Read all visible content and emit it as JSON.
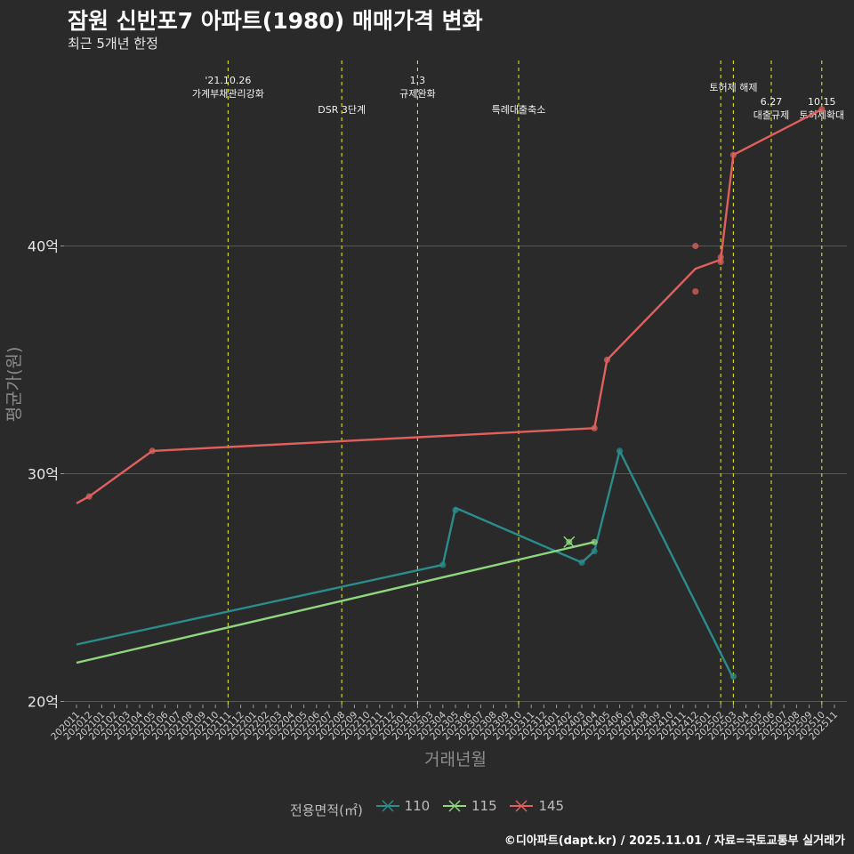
{
  "header": {
    "title": "잠원 신반포7 아파트(1980) 매매가격 변화",
    "subtitle": "최근 5개년 한정"
  },
  "caption": "©디아파트(dapt.kr) / 2025.11.01 / 자료=국토교통부 실거래가",
  "colors": {
    "background": "#2b2a2b",
    "grid": "#5a5a5a",
    "event_line": "#d9e021",
    "series_110": "#2b8c8c",
    "series_115": "#8fd67f",
    "series_145": "#e0605e"
  },
  "chart_data": {
    "type": "line",
    "xlabel": "거래년월",
    "ylabel": "평균가(원)",
    "ylim": [
      20,
      46.5
    ],
    "y_unit": "억",
    "y_ticks": [
      20,
      30,
      40
    ],
    "y_tick_labels": [
      "20억",
      "30억",
      "40억"
    ],
    "categories": [
      "202011",
      "202012",
      "202101",
      "202102",
      "202103",
      "202104",
      "202105",
      "202106",
      "202107",
      "202108",
      "202109",
      "202110",
      "202111",
      "202112",
      "202201",
      "202202",
      "202203",
      "202204",
      "202205",
      "202206",
      "202207",
      "202208",
      "202209",
      "202210",
      "202211",
      "202212",
      "202301",
      "202302",
      "202303",
      "202304",
      "202305",
      "202306",
      "202307",
      "202308",
      "202309",
      "202310",
      "202311",
      "202312",
      "202401",
      "202402",
      "202403",
      "202404",
      "202405",
      "202406",
      "202407",
      "202408",
      "202409",
      "202410",
      "202411",
      "202412",
      "202501",
      "202502",
      "202503",
      "202504",
      "202505",
      "202506",
      "202507",
      "202508",
      "202509",
      "202510",
      "202511"
    ],
    "legend_title": "전용면적(㎡)",
    "series": [
      {
        "name": "110",
        "color": "#2b8c8c",
        "line": [
          [
            "202011",
            22.5
          ],
          [
            "202304",
            26.0
          ],
          [
            "202305",
            28.5
          ],
          [
            "202403",
            26.1
          ],
          [
            "202404",
            26.6
          ],
          [
            "202406",
            31.0
          ],
          [
            "202503",
            21.0
          ]
        ],
        "points": [
          [
            "202304",
            26.0
          ],
          [
            "202305",
            28.4
          ],
          [
            "202403",
            26.1
          ],
          [
            "202404",
            26.6
          ],
          [
            "202406",
            31.0
          ],
          [
            "202503",
            21.1
          ]
        ]
      },
      {
        "name": "115",
        "color": "#8fd67f",
        "line": [
          [
            "202011",
            21.7
          ],
          [
            "202404",
            27.0
          ]
        ],
        "points": [
          [
            "202402",
            27.0
          ],
          [
            "202404",
            27.0
          ]
        ]
      },
      {
        "name": "145",
        "color": "#e0605e",
        "line": [
          [
            "202011",
            28.7
          ],
          [
            "202012",
            29.0
          ],
          [
            "202105",
            31.0
          ],
          [
            "202404",
            32.0
          ],
          [
            "202405",
            35.0
          ],
          [
            "202412",
            39.0
          ],
          [
            "202502",
            39.4
          ],
          [
            "202503",
            44.0
          ],
          [
            "202510",
            46.0
          ]
        ],
        "points": [
          [
            "202012",
            29.0
          ],
          [
            "202105",
            31.0
          ],
          [
            "202404",
            32.0
          ],
          [
            "202405",
            35.0
          ],
          [
            "202412",
            40.0
          ],
          [
            "202412",
            38.0
          ],
          [
            "202502",
            39.3
          ],
          [
            "202502",
            39.5
          ],
          [
            "202503",
            44.0
          ],
          [
            "202510",
            46.0
          ]
        ]
      }
    ],
    "events": [
      {
        "date": "202111",
        "lines": [
          "'21.10.26",
          "가계부채관리강화"
        ],
        "level": 1
      },
      {
        "date": "202208",
        "lines": [
          "DSR 3단계"
        ],
        "level": 2
      },
      {
        "date": "202302",
        "lines": [
          "1.3",
          "규제완화"
        ],
        "level": 1
      },
      {
        "date": "202310",
        "lines": [
          "특례대출축소"
        ],
        "level": 2
      },
      {
        "date": "202502",
        "lines": [],
        "level": 0
      },
      {
        "date": "202503",
        "lines": [
          "토허제 해제"
        ],
        "level": 1.5
      },
      {
        "date": "202506",
        "lines": [
          "6.27",
          "대출규제"
        ],
        "level": 2.5
      },
      {
        "date": "202510",
        "lines": [
          "10.15",
          "토허제확대"
        ],
        "level": 2.5
      }
    ]
  }
}
